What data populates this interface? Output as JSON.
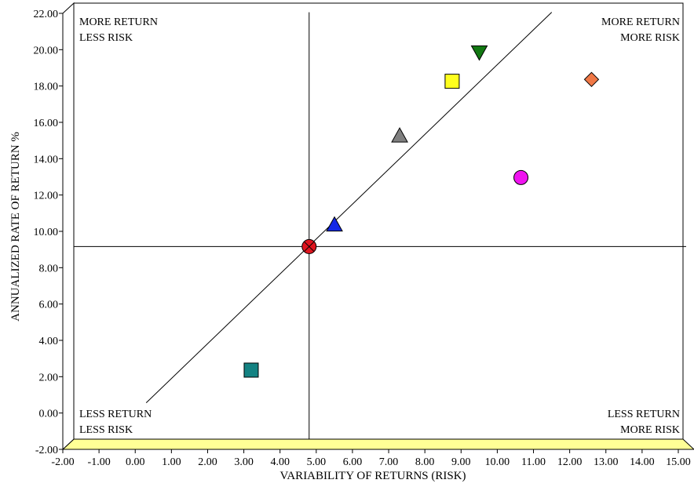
{
  "chart_data": {
    "type": "scatter",
    "xlabel": "VARIABILITY OF RETURNS (RISK)",
    "ylabel": "ANNUALIZED RATE OF RETURN %",
    "xlim": [
      -2,
      15
    ],
    "ylim": [
      -2,
      22
    ],
    "x_ticks": [
      "-2.00",
      "-1.00",
      "0.00",
      "1.00",
      "2.00",
      "3.00",
      "4.00",
      "5.00",
      "6.00",
      "7.00",
      "8.00",
      "9.00",
      "10.00",
      "11.00",
      "12.00",
      "13.00",
      "14.00",
      "15.00"
    ],
    "y_ticks": [
      "-2.00",
      "0.00",
      "2.00",
      "4.00",
      "6.00",
      "8.00",
      "10.00",
      "12.00",
      "14.00",
      "16.00",
      "18.00",
      "20.00",
      "22.00"
    ],
    "quadrant_labels": {
      "top_left": [
        "MORE RETURN",
        "LESS RISK"
      ],
      "top_right": [
        "MORE RETURN",
        "MORE RISK"
      ],
      "bottom_left": [
        "LESS RETURN",
        "LESS RISK"
      ],
      "bottom_right": [
        "LESS RETURN",
        "MORE RISK"
      ]
    },
    "reference_lines": {
      "vertical_x": 4.5,
      "horizontal_y": 8.6,
      "diagonal": {
        "from": [
          0.0,
          0.0
        ],
        "to": [
          11.2,
          21.5
        ]
      }
    },
    "points": [
      {
        "x": 4.5,
        "y": 8.6,
        "marker": "circle-cross",
        "color": "#e0141e"
      },
      {
        "x": 5.2,
        "y": 9.8,
        "marker": "triangle-up",
        "color": "#1428e6"
      },
      {
        "x": 7.0,
        "y": 14.7,
        "marker": "triangle-up",
        "color": "#808080"
      },
      {
        "x": 8.45,
        "y": 17.7,
        "marker": "square",
        "color": "#ffff1e"
      },
      {
        "x": 9.2,
        "y": 19.3,
        "marker": "triangle-down",
        "color": "#127812"
      },
      {
        "x": 12.3,
        "y": 17.8,
        "marker": "diamond",
        "color": "#f07846"
      },
      {
        "x": 10.35,
        "y": 12.4,
        "marker": "circle",
        "color": "#f014f0"
      },
      {
        "x": 2.9,
        "y": 1.8,
        "marker": "square",
        "color": "#148282"
      }
    ],
    "grid": false,
    "floor_color": "#ffff96"
  }
}
